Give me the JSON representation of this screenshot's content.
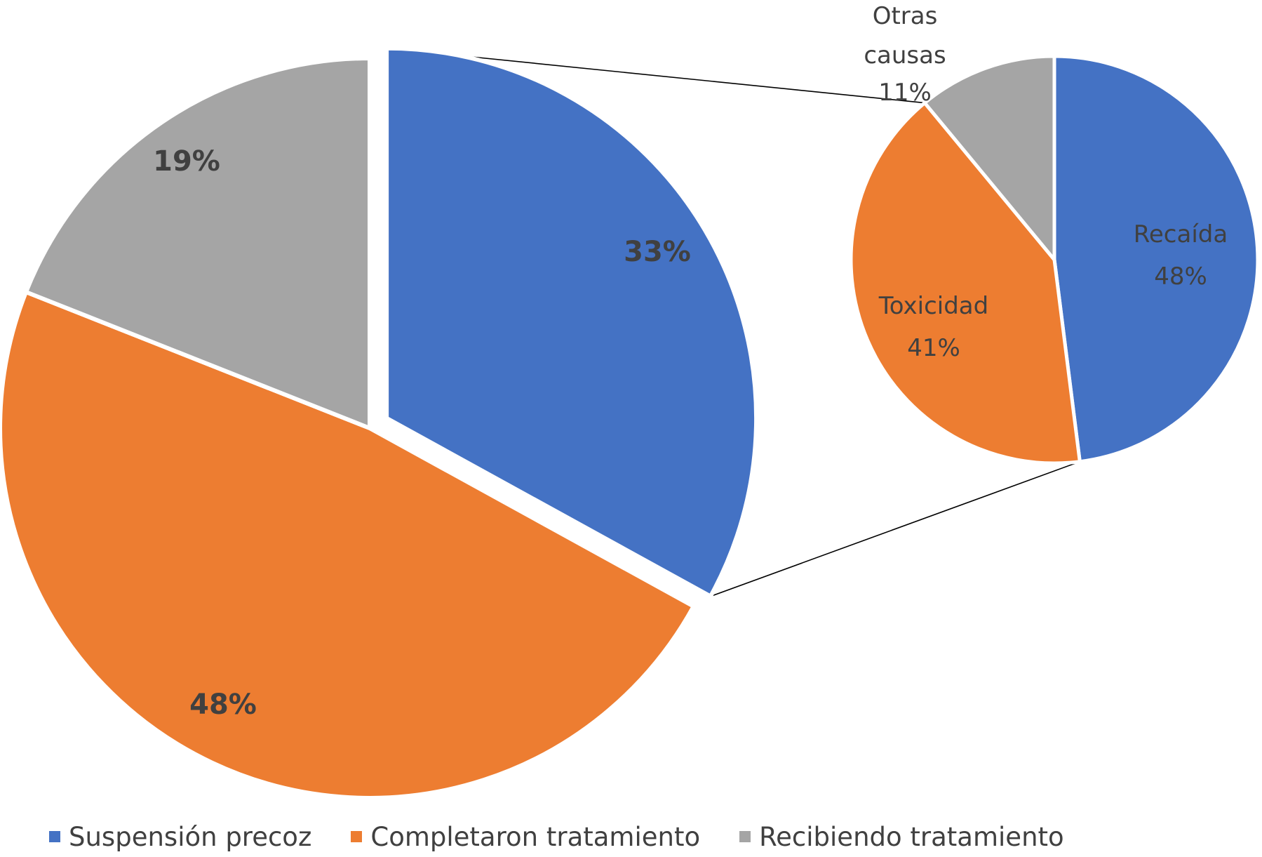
{
  "chart_data": {
    "type": "pie",
    "subtype": "pie-of-pie",
    "main_pie": {
      "slices": [
        {
          "name": "Suspensión precoz",
          "value": 33,
          "label": "33%",
          "color": "#4472C4",
          "exploded": true
        },
        {
          "name": "Completaron tratamiento",
          "value": 48,
          "label": "48%",
          "color": "#ED7D31"
        },
        {
          "name": "Recibiendo tratamiento",
          "value": 19,
          "label": "19%",
          "color": "#A5A5A5"
        }
      ]
    },
    "secondary_pie": {
      "breakdown_of": "Suspensión precoz",
      "slices": [
        {
          "name": "Recaída",
          "value": 48,
          "label": "48%",
          "color": "#4472C4"
        },
        {
          "name": "Toxicidad",
          "value": 41,
          "label": "41%",
          "color": "#ED7D31"
        },
        {
          "name": "Otras causas",
          "value": 11,
          "label": "11%",
          "color": "#A5A5A5",
          "name_lines": [
            "Otras",
            "causas"
          ]
        }
      ]
    },
    "legend": {
      "position": "bottom-left",
      "entries": [
        "Suspensión precoz",
        "Completaron tratamiento",
        "Recibiendo tratamiento"
      ]
    },
    "label_color": "#404040"
  }
}
